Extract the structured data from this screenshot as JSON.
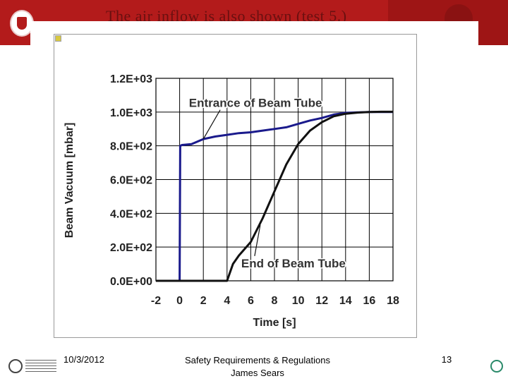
{
  "header": {
    "title_fragment": "The air inflow is also shown (test 5.)"
  },
  "footer": {
    "date": "10/3/2012",
    "title_line1": "Safety Requirements & Regulations",
    "title_line2": "James Sears",
    "page_number": "13"
  },
  "chart_data": {
    "type": "line",
    "title": "",
    "xlabel": "Time [s]",
    "ylabel": "Beam Vacuum [mbar]",
    "xlim": [
      -2,
      18
    ],
    "ylim": [
      0,
      1200
    ],
    "x_ticks": [
      "-2",
      "0",
      "2",
      "4",
      "6",
      "8",
      "10",
      "12",
      "14",
      "16",
      "18"
    ],
    "y_ticks": [
      "0.0E+00",
      "2.0E+02",
      "4.0E+02",
      "6.0E+02",
      "8.0E+02",
      "1.0E+03",
      "1.2E+03"
    ],
    "grid": true,
    "legend": "none",
    "colors": {
      "entrance": "#1a1a8c",
      "end": "#111111",
      "grid": "#000000"
    },
    "series": [
      {
        "name": "Entrance of Beam Tube",
        "x": [
          -2,
          0,
          0.05,
          0.2,
          1,
          2,
          3,
          4,
          5,
          6,
          7,
          8,
          9,
          10,
          11,
          12,
          13,
          14,
          15,
          16,
          17,
          18
        ],
        "y": [
          0,
          0,
          800,
          805,
          810,
          840,
          855,
          865,
          875,
          880,
          890,
          900,
          910,
          930,
          950,
          965,
          985,
          995,
          998,
          1000,
          1000,
          1000
        ]
      },
      {
        "name": "End of Beam Tube",
        "x": [
          -2,
          0,
          2,
          4,
          4.5,
          5,
          6,
          7,
          8,
          9,
          10,
          11,
          12,
          13,
          14,
          15,
          16,
          17,
          18
        ],
        "y": [
          0,
          0,
          0,
          0,
          100,
          150,
          230,
          370,
          530,
          690,
          810,
          890,
          940,
          975,
          990,
          997,
          1000,
          1002,
          1002
        ]
      }
    ],
    "annotations": [
      {
        "text": "Entrance of Beam Tube",
        "x": 6.4,
        "y": 1030,
        "arrow_to": [
          2,
          840
        ]
      },
      {
        "text": "End of Beam Tube",
        "x": 9.6,
        "y": 80,
        "arrow_to": [
          6.8,
          330
        ]
      }
    ]
  }
}
